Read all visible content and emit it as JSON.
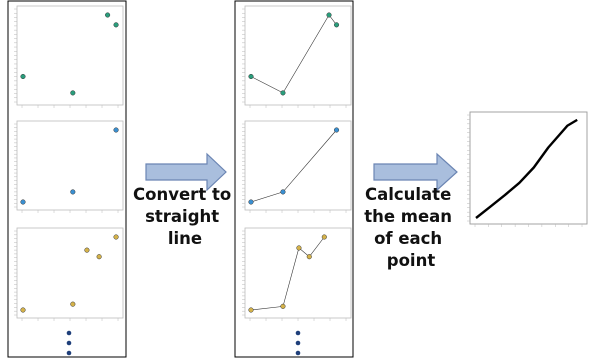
{
  "steps": [
    {
      "label_lines": [
        "Convert to",
        "straight",
        "line"
      ]
    },
    {
      "label_lines": [
        "Calculate",
        "the mean",
        "of each",
        "point"
      ]
    }
  ],
  "colors": {
    "series_1": "#2a9d7c",
    "series_2": "#3a8fd0",
    "series_3": "#d4b24a",
    "arrow_fill": "#a9bedd",
    "arrow_stroke": "#6b85b3",
    "ellipsis_dot": "#1f3f7a"
  },
  "chart_data": [
    {
      "type": "scatter",
      "panel": "scatter-column",
      "series": [
        {
          "x": [
            0,
            5.3,
            9,
            9.9
          ],
          "y": [
            0.25,
            0.05,
            1.0,
            0.88
          ]
        },
        {
          "x": [
            0,
            5.3,
            9.9
          ],
          "y": [
            0.0,
            0.14,
            1.0
          ]
        },
        {
          "x": [
            0,
            5.3,
            6.8,
            8.1,
            9.9
          ],
          "y": [
            0.0,
            0.08,
            0.82,
            0.73,
            1.0
          ]
        }
      ]
    },
    {
      "type": "line",
      "panel": "line-column",
      "series": [
        {
          "x": [
            0,
            3.4,
            8.3,
            9.1
          ],
          "y": [
            0.25,
            0.05,
            1.0,
            0.88
          ]
        },
        {
          "x": [
            0,
            3.4,
            9.1
          ],
          "y": [
            0.0,
            0.14,
            1.0
          ]
        },
        {
          "x": [
            0,
            3.4,
            5.1,
            6.2,
            7.8
          ],
          "y": [
            0.0,
            0.05,
            0.85,
            0.73,
            1.0
          ]
        }
      ]
    },
    {
      "type": "line",
      "panel": "mean",
      "series": [
        {
          "x": [
            0,
            1.5,
            3,
            4.5,
            6,
            7.5,
            9.5,
            10.5
          ],
          "y": [
            0.0,
            0.12,
            0.24,
            0.37,
            0.53,
            0.74,
            0.97,
            1.03
          ]
        }
      ]
    }
  ]
}
